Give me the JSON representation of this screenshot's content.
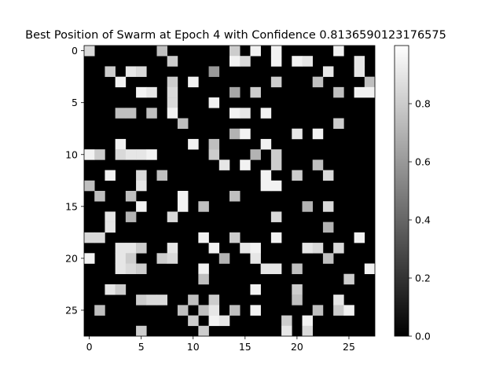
{
  "chart_data": {
    "type": "heatmap",
    "title": "Best Position of Swarm at Epoch 4 with Confidence 0.8136590123176575",
    "colormap": "gray",
    "vmin": 0.0,
    "vmax": 1.0,
    "rows": 28,
    "cols": 28,
    "x_ticks": [
      0,
      5,
      10,
      15,
      20,
      25
    ],
    "y_ticks": [
      0,
      5,
      10,
      15,
      20,
      25
    ],
    "colorbar_ticks": [
      0.0,
      0.2,
      0.4,
      0.6,
      0.8
    ],
    "cells": [
      [
        0,
        0,
        0.85
      ],
      [
        0,
        7,
        0.75
      ],
      [
        0,
        14,
        0.8
      ],
      [
        0,
        16,
        0.95
      ],
      [
        0,
        18,
        0.95
      ],
      [
        0,
        24,
        0.95
      ],
      [
        1,
        8,
        0.8
      ],
      [
        1,
        14,
        0.95
      ],
      [
        1,
        15,
        0.85
      ],
      [
        1,
        18,
        0.95
      ],
      [
        1,
        20,
        0.95
      ],
      [
        1,
        21,
        0.9
      ],
      [
        1,
        26,
        0.9
      ],
      [
        2,
        2,
        0.8
      ],
      [
        2,
        4,
        0.9
      ],
      [
        2,
        5,
        0.85
      ],
      [
        2,
        12,
        0.6
      ],
      [
        2,
        23,
        0.9
      ],
      [
        2,
        26,
        0.9
      ],
      [
        3,
        3,
        0.95
      ],
      [
        3,
        8,
        0.8
      ],
      [
        3,
        10,
        0.95
      ],
      [
        3,
        18,
        0.8
      ],
      [
        3,
        22,
        0.75
      ],
      [
        3,
        27,
        0.75
      ],
      [
        4,
        5,
        0.95
      ],
      [
        4,
        6,
        0.9
      ],
      [
        4,
        8,
        0.85
      ],
      [
        4,
        14,
        0.65
      ],
      [
        4,
        16,
        0.8
      ],
      [
        4,
        24,
        0.75
      ],
      [
        4,
        26,
        0.95
      ],
      [
        4,
        27,
        0.95
      ],
      [
        5,
        8,
        0.85
      ],
      [
        5,
        12,
        0.95
      ],
      [
        6,
        3,
        0.75
      ],
      [
        6,
        4,
        0.75
      ],
      [
        6,
        6,
        0.75
      ],
      [
        6,
        8,
        0.95
      ],
      [
        6,
        14,
        0.95
      ],
      [
        6,
        15,
        0.9
      ],
      [
        6,
        17,
        0.95
      ],
      [
        7,
        9,
        0.75
      ],
      [
        7,
        24,
        0.8
      ],
      [
        8,
        14,
        0.7
      ],
      [
        8,
        15,
        0.95
      ],
      [
        8,
        20,
        0.9
      ],
      [
        8,
        22,
        0.95
      ],
      [
        9,
        3,
        0.95
      ],
      [
        9,
        10,
        0.95
      ],
      [
        9,
        12,
        0.75
      ],
      [
        9,
        17,
        0.95
      ],
      [
        10,
        0,
        0.95
      ],
      [
        10,
        1,
        0.8
      ],
      [
        10,
        3,
        0.85
      ],
      [
        10,
        4,
        0.9
      ],
      [
        10,
        5,
        0.9
      ],
      [
        10,
        6,
        0.95
      ],
      [
        10,
        12,
        0.8
      ],
      [
        10,
        16,
        0.7
      ],
      [
        10,
        18,
        0.8
      ],
      [
        11,
        13,
        0.9
      ],
      [
        11,
        15,
        0.95
      ],
      [
        11,
        18,
        0.8
      ],
      [
        11,
        22,
        0.75
      ],
      [
        12,
        2,
        0.95
      ],
      [
        12,
        5,
        0.85
      ],
      [
        12,
        7,
        0.75
      ],
      [
        12,
        17,
        0.95
      ],
      [
        12,
        20,
        0.8
      ],
      [
        12,
        23,
        0.85
      ],
      [
        13,
        0,
        0.75
      ],
      [
        13,
        5,
        0.9
      ],
      [
        13,
        17,
        0.95
      ],
      [
        13,
        18,
        0.95
      ],
      [
        14,
        1,
        0.75
      ],
      [
        14,
        4,
        0.75
      ],
      [
        14,
        9,
        0.95
      ],
      [
        14,
        14,
        0.75
      ],
      [
        15,
        5,
        0.95
      ],
      [
        15,
        9,
        0.95
      ],
      [
        15,
        11,
        0.75
      ],
      [
        15,
        21,
        0.7
      ],
      [
        15,
        23,
        0.85
      ],
      [
        16,
        2,
        0.9
      ],
      [
        16,
        4,
        0.7
      ],
      [
        16,
        8,
        0.85
      ],
      [
        16,
        18,
        0.85
      ],
      [
        17,
        2,
        0.9
      ],
      [
        17,
        23,
        0.7
      ],
      [
        18,
        0,
        0.85
      ],
      [
        18,
        1,
        0.85
      ],
      [
        18,
        11,
        0.95
      ],
      [
        18,
        14,
        0.8
      ],
      [
        18,
        18,
        0.95
      ],
      [
        18,
        26,
        0.95
      ],
      [
        19,
        3,
        0.9
      ],
      [
        19,
        4,
        0.9
      ],
      [
        19,
        5,
        0.8
      ],
      [
        19,
        8,
        0.9
      ],
      [
        19,
        12,
        0.95
      ],
      [
        19,
        15,
        0.9
      ],
      [
        19,
        16,
        0.95
      ],
      [
        19,
        21,
        0.9
      ],
      [
        19,
        22,
        0.85
      ],
      [
        19,
        24,
        0.85
      ],
      [
        20,
        0,
        0.95
      ],
      [
        20,
        3,
        0.9
      ],
      [
        20,
        4,
        0.8
      ],
      [
        20,
        7,
        0.8
      ],
      [
        20,
        8,
        0.85
      ],
      [
        20,
        13,
        0.7
      ],
      [
        20,
        16,
        0.9
      ],
      [
        20,
        23,
        0.75
      ],
      [
        21,
        3,
        0.9
      ],
      [
        21,
        4,
        0.85
      ],
      [
        21,
        5,
        0.8
      ],
      [
        21,
        11,
        0.95
      ],
      [
        21,
        17,
        0.9
      ],
      [
        21,
        18,
        0.9
      ],
      [
        21,
        20,
        0.75
      ],
      [
        21,
        27,
        0.95
      ],
      [
        22,
        11,
        0.75
      ],
      [
        22,
        25,
        0.8
      ],
      [
        23,
        2,
        0.9
      ],
      [
        23,
        3,
        0.8
      ],
      [
        23,
        16,
        0.95
      ],
      [
        23,
        20,
        0.8
      ],
      [
        24,
        5,
        0.8
      ],
      [
        24,
        6,
        0.85
      ],
      [
        24,
        7,
        0.85
      ],
      [
        24,
        10,
        0.75
      ],
      [
        24,
        12,
        0.8
      ],
      [
        24,
        20,
        0.75
      ],
      [
        24,
        24,
        0.9
      ],
      [
        25,
        1,
        0.75
      ],
      [
        25,
        9,
        0.75
      ],
      [
        25,
        11,
        0.75
      ],
      [
        25,
        12,
        0.9
      ],
      [
        25,
        14,
        0.75
      ],
      [
        25,
        16,
        0.95
      ],
      [
        25,
        22,
        0.75
      ],
      [
        25,
        24,
        0.8
      ],
      [
        25,
        25,
        0.95
      ],
      [
        26,
        10,
        0.8
      ],
      [
        26,
        12,
        0.95
      ],
      [
        26,
        13,
        0.9
      ],
      [
        26,
        19,
        0.8
      ],
      [
        26,
        21,
        0.95
      ],
      [
        27,
        5,
        0.8
      ],
      [
        27,
        11,
        0.8
      ],
      [
        27,
        19,
        0.9
      ],
      [
        27,
        21,
        0.85
      ]
    ]
  }
}
